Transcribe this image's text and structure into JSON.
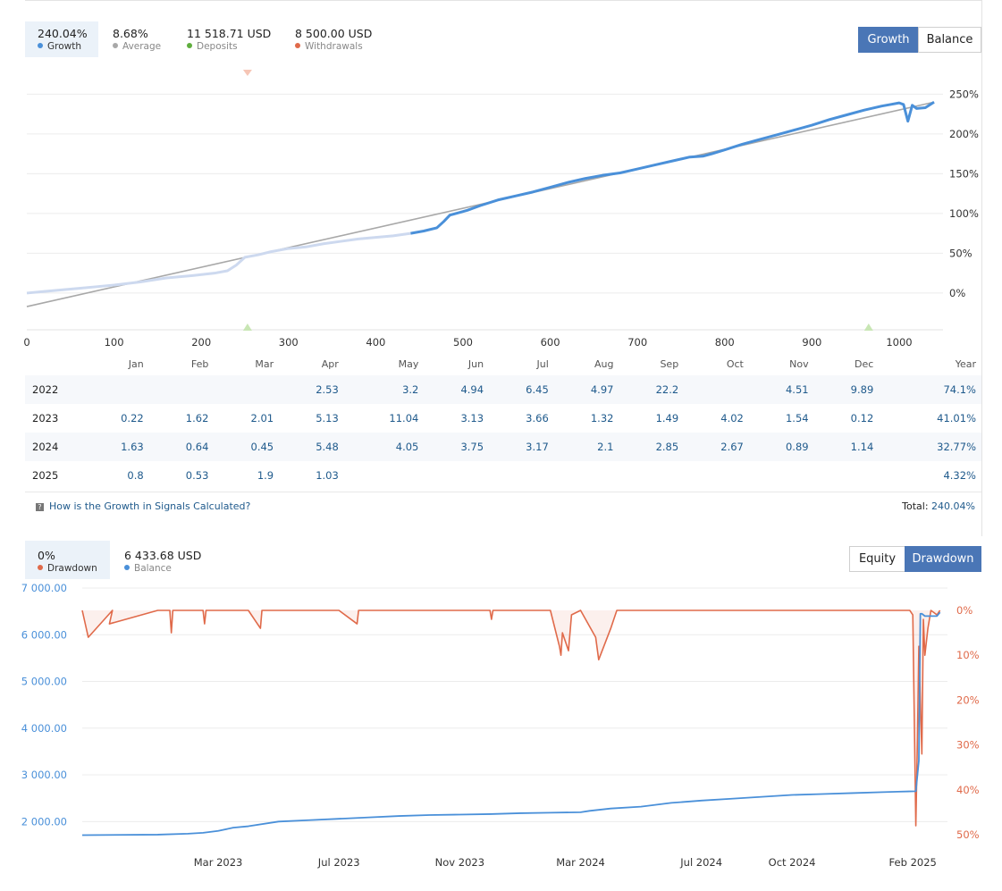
{
  "growth_panel": {
    "stats": [
      {
        "value": "240.04%",
        "label": "Growth",
        "color": "#4a90d9"
      },
      {
        "value": "8.68%",
        "label": "Average",
        "color": "#a8a8a8"
      },
      {
        "value": "11 518.71 USD",
        "label": "Deposits",
        "color": "#5fae3e"
      },
      {
        "value": "8 500.00 USD",
        "label": "Withdrawals",
        "color": "#e06a4a"
      }
    ],
    "toggle": {
      "growth": "Growth",
      "balance": "Balance"
    }
  },
  "monthly_table": {
    "headers": [
      "",
      "Jan",
      "Feb",
      "Mar",
      "Apr",
      "May",
      "Jun",
      "Jul",
      "Aug",
      "Sep",
      "Oct",
      "Nov",
      "Dec",
      "Year"
    ],
    "rows": [
      {
        "year": "2022",
        "values": [
          "",
          "",
          "",
          "2.53",
          "3.2",
          "4.94",
          "6.45",
          "4.97",
          "22.2",
          "",
          "4.51",
          "9.89"
        ],
        "total": "74.1%"
      },
      {
        "year": "2023",
        "values": [
          "0.22",
          "1.62",
          "2.01",
          "5.13",
          "11.04",
          "3.13",
          "3.66",
          "1.32",
          "1.49",
          "4.02",
          "1.54",
          "0.12"
        ],
        "total": "41.01%"
      },
      {
        "year": "2024",
        "values": [
          "1.63",
          "0.64",
          "0.45",
          "5.48",
          "4.05",
          "3.75",
          "3.17",
          "2.1",
          "2.85",
          "2.67",
          "0.89",
          "1.14"
        ],
        "total": "32.77%"
      },
      {
        "year": "2025",
        "values": [
          "0.8",
          "0.53",
          "1.9",
          "1.03",
          "",
          "",
          "",
          "",
          "",
          "",
          "",
          ""
        ],
        "total": "4.32%"
      }
    ],
    "help_link": "How is the Growth in Signals Calculated?",
    "total_label": "Total:",
    "total_value": "240.04%"
  },
  "drawdown_panel": {
    "stats": [
      {
        "value": "0%",
        "label": "Drawdown",
        "color": "#e06a4a"
      },
      {
        "value": "6 433.68 USD",
        "label": "Balance",
        "color": "#4a90d9"
      }
    ],
    "toggle": {
      "equity": "Equity",
      "drawdown": "Drawdown"
    }
  },
  "chart_data": [
    {
      "type": "line",
      "x_ticks": [
        0,
        100,
        200,
        300,
        400,
        500,
        600,
        700,
        800,
        900,
        1000
      ],
      "y_ticks": [
        "0%",
        "50%",
        "100%",
        "150%",
        "200%",
        "250%"
      ],
      "xlim": [
        0,
        1040
      ],
      "ylim": [
        -45,
        265
      ],
      "series": [
        {
          "color": "#4a90d9",
          "x": [
            0,
            20,
            40,
            60,
            80,
            100,
            130,
            160,
            190,
            215,
            230,
            240,
            250,
            265,
            280,
            300,
            320,
            340,
            360,
            380,
            400,
            420,
            440,
            455,
            470,
            478,
            485,
            495,
            505,
            520,
            540,
            560,
            580,
            600,
            620,
            640,
            660,
            680,
            700,
            720,
            740,
            760,
            775,
            785,
            800,
            820,
            840,
            860,
            880,
            900,
            920,
            940,
            960,
            980,
            990,
            1000,
            1005,
            1010,
            1015,
            1020,
            1030,
            1040
          ],
          "y": [
            0,
            2,
            4,
            6,
            8,
            10,
            14,
            19,
            22,
            25,
            28,
            35,
            45,
            48,
            52,
            56,
            58,
            62,
            65,
            68,
            70,
            72,
            75,
            78,
            82,
            90,
            98,
            101,
            104,
            110,
            117,
            122,
            127,
            133,
            139,
            144,
            148,
            151,
            156,
            161,
            166,
            171,
            172,
            175,
            180,
            187,
            193,
            199,
            205,
            211,
            218,
            224,
            230,
            235,
            237,
            239,
            237,
            216,
            236,
            232,
            233,
            240
          ]
        },
        {
          "color": "#a8a8a8",
          "x": [
            0,
            1040
          ],
          "y": [
            -17,
            240
          ]
        }
      ],
      "markers": [
        {
          "x": 253,
          "kind": "withdrawal"
        },
        {
          "x": 253,
          "kind": "deposit"
        },
        {
          "x": 965,
          "kind": "deposit"
        }
      ]
    },
    {
      "type": "line",
      "x_labels": [
        "Mar 2023",
        "Jul 2023",
        "Nov 2023",
        "Mar 2024",
        "Jul 2024",
        "Oct 2024",
        "Feb 2025"
      ],
      "x_label_positions": [
        2.0,
        6.0,
        10.0,
        14.0,
        18.0,
        21.0,
        25.0
      ],
      "xlim": [
        -2.5,
        26.0
      ],
      "left_axis": [
        "2 000.00",
        "3 000.00",
        "4 000.00",
        "5 000.00",
        "6 000.00",
        "7 000.00"
      ],
      "left_ylim": [
        1700,
        7000
      ],
      "right_axis": [
        "0%",
        "10%",
        "20%",
        "30%",
        "40%",
        "50%"
      ],
      "right_ylim": [
        -3,
        52
      ],
      "series": [
        {
          "name": "Balance",
          "axis": "left",
          "color": "#4a90d9",
          "x": [
            -2.5,
            0,
            1.0,
            1.5,
            2.0,
            2.5,
            3.0,
            4.0,
            5.0,
            6.0,
            7.0,
            8.0,
            9.0,
            10.0,
            11.0,
            12.0,
            13.0,
            14.0,
            14.3,
            15.0,
            16.0,
            17.0,
            18.0,
            19.0,
            20.0,
            21.0,
            22.0,
            23.0,
            24.0,
            24.5,
            25.1,
            25.2,
            25.25,
            25.3,
            25.4,
            25.8,
            25.9
          ],
          "y": [
            1710,
            1720,
            1740,
            1760,
            1800,
            1870,
            1900,
            2000,
            2030,
            2060,
            2090,
            2120,
            2140,
            2150,
            2160,
            2180,
            2190,
            2200,
            2230,
            2280,
            2320,
            2400,
            2450,
            2490,
            2530,
            2570,
            2590,
            2610,
            2630,
            2640,
            2650,
            3300,
            6450,
            6450,
            6400,
            6400,
            6480
          ]
        },
        {
          "name": "Drawdown",
          "axis": "right",
          "color": "#e06a4a",
          "x": [
            -2.5,
            -2.3,
            -1.5,
            -1.6,
            0,
            0.4,
            0.45,
            0.5,
            1.5,
            1.55,
            1.6,
            3.0,
            3.4,
            3.45,
            3.5,
            5.0,
            6.0,
            6.6,
            6.65,
            6.7,
            11.0,
            11.05,
            11.1,
            13.0,
            13.3,
            13.35,
            13.4,
            13.6,
            13.7,
            14.0,
            14.5,
            14.6,
            15.0,
            15.1,
            15.2,
            16.0,
            18.0,
            20.0,
            22.0,
            24.0,
            24.9,
            25.0,
            25.1,
            25.15,
            25.2,
            25.3,
            25.35,
            25.4,
            25.5,
            25.6,
            25.8,
            25.9
          ],
          "y": [
            0,
            6,
            0,
            3,
            0,
            0,
            5,
            0,
            0,
            3,
            0,
            0,
            4,
            0,
            0,
            0,
            0,
            3,
            0,
            0,
            0,
            2,
            0,
            0,
            8,
            10,
            5,
            9,
            1,
            0,
            6,
            11,
            4,
            2,
            0,
            0,
            0,
            0,
            0,
            0,
            0,
            1,
            48,
            30,
            8,
            32,
            2,
            10,
            4,
            0,
            1,
            0
          ]
        }
      ]
    }
  ]
}
